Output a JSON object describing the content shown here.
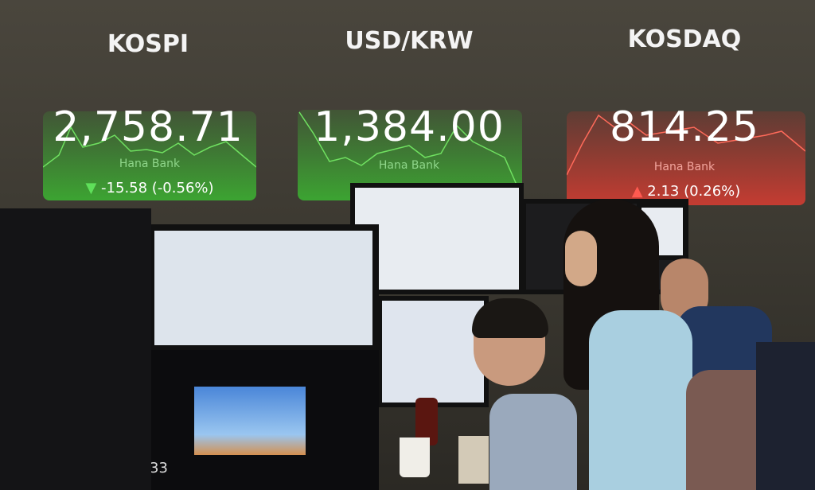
{
  "board": {
    "indices": [
      {
        "name": "KOSPI",
        "value": "2,758.71",
        "change": "-15.58 (-0.56%)",
        "direction": "down",
        "color": "#3fae3a"
      },
      {
        "name": "USD/KRW",
        "value": "1,384.00",
        "change": "",
        "direction": "down",
        "color": "#3fae3a"
      },
      {
        "name": "KOSDAQ",
        "value": "814.25",
        "change": "2.13 (0.26%)",
        "direction": "up",
        "color": "#d9362f"
      }
    ],
    "brand": "Hana Bank"
  },
  "desk_monitor": {
    "clock": "33"
  }
}
